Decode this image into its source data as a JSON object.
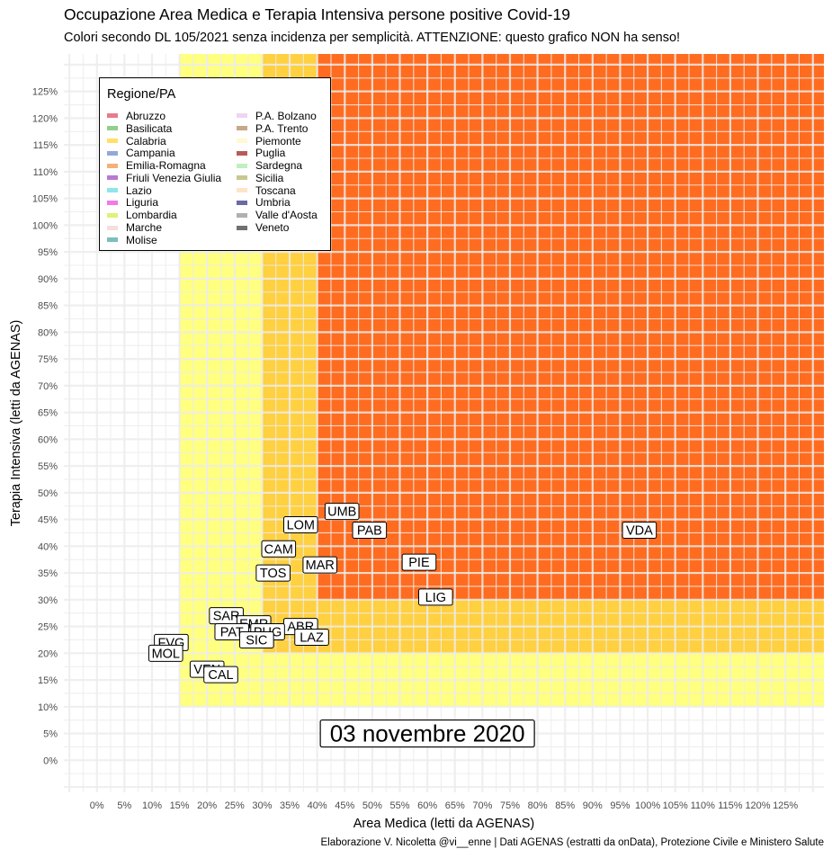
{
  "title": "Occupazione Area Medica e Terapia Intensiva persone positive Covid-19",
  "subtitle": "Colori secondo DL 105/2021 senza incidenza per semplicità. ATTENZIONE: questo grafico NON ha senso!",
  "caption": "Elaborazione V. Nicoletta @vi__enne | Dati AGENAS (estratti da onData), Protezione Civile e Ministero Salute",
  "colors": {
    "yellow": "#ffff80",
    "orange": "#ffd040",
    "red": "#ff6c20",
    "grid": "#ececec",
    "label_bg": "#ffffff",
    "label_border": "#000000"
  },
  "chart_data": {
    "type": "scatter",
    "xlabel": "Area Medica (letti da AGENAS)",
    "ylabel": "Terapia Intensiva (letti da AGENAS)",
    "xlim": [
      -6,
      132
    ],
    "ylim": [
      -6,
      132
    ],
    "x_ticks": [
      0,
      5,
      10,
      15,
      20,
      25,
      30,
      35,
      40,
      45,
      50,
      55,
      60,
      65,
      70,
      75,
      80,
      85,
      90,
      95,
      100,
      105,
      110,
      115,
      120,
      125
    ],
    "y_ticks": [
      0,
      5,
      10,
      15,
      20,
      25,
      30,
      35,
      40,
      45,
      50,
      55,
      60,
      65,
      70,
      75,
      80,
      85,
      90,
      95,
      100,
      105,
      110,
      115,
      120,
      125
    ],
    "tick_suffix": "%",
    "grid": true,
    "zones": [
      {
        "name": "gialla",
        "color": "#ffff80",
        "x_from": 15,
        "y_from": 10
      },
      {
        "name": "arancione",
        "color": "#ffd040",
        "x_from": 30,
        "y_from": 20
      },
      {
        "name": "rossa",
        "color": "#ff6c20",
        "x_from": 40,
        "y_from": 30
      }
    ],
    "annotation": "03 novembre 2020",
    "points": [
      {
        "label": "UMB",
        "x": 44.5,
        "y": 46.5
      },
      {
        "label": "LOM",
        "x": 37,
        "y": 44
      },
      {
        "label": "PAB",
        "x": 49.5,
        "y": 43
      },
      {
        "label": "VDA",
        "x": 98.5,
        "y": 43
      },
      {
        "label": "CAM",
        "x": 33,
        "y": 39.5
      },
      {
        "label": "MAR",
        "x": 40.5,
        "y": 36.5
      },
      {
        "label": "PIE",
        "x": 58.5,
        "y": 37
      },
      {
        "label": "TOS",
        "x": 32,
        "y": 35
      },
      {
        "label": "LIG",
        "x": 61.5,
        "y": 30.5
      },
      {
        "label": "SAR",
        "x": 23.5,
        "y": 27
      },
      {
        "label": "ABR",
        "x": 37,
        "y": 25
      },
      {
        "label": "EMR",
        "x": 28.5,
        "y": 25.5
      },
      {
        "label": "PUG",
        "x": 31,
        "y": 24
      },
      {
        "label": "PAT",
        "x": 24.5,
        "y": 24
      },
      {
        "label": "SIC",
        "x": 29,
        "y": 22.5
      },
      {
        "label": "LAZ",
        "x": 39,
        "y": 23
      },
      {
        "label": "FVG",
        "x": 13.5,
        "y": 22
      },
      {
        "label": "MOL",
        "x": 12.5,
        "y": 20
      },
      {
        "label": "VEN",
        "x": 20,
        "y": 17
      },
      {
        "label": "CAL",
        "x": 22.5,
        "y": 16
      }
    ]
  },
  "legend": {
    "title": "Regione/PA",
    "items": [
      {
        "name": "Abruzzo",
        "color": "#e87a8c"
      },
      {
        "name": "Basilicata",
        "color": "#8fd08f"
      },
      {
        "name": "Calabria",
        "color": "#ffe06b"
      },
      {
        "name": "Campania",
        "color": "#94a8d8"
      },
      {
        "name": "Emilia-Romagna",
        "color": "#f5b07a"
      },
      {
        "name": "Friuli Venezia Giulia",
        "color": "#b87ad0"
      },
      {
        "name": "Lazio",
        "color": "#8fe6e6"
      },
      {
        "name": "Liguria",
        "color": "#f07ae6"
      },
      {
        "name": "Lombardia",
        "color": "#e0f07a"
      },
      {
        "name": "Marche",
        "color": "#f5dede"
      },
      {
        "name": "Molise",
        "color": "#7ac0b8"
      },
      {
        "name": "P.A. Bolzano",
        "color": "#ecd6f0"
      },
      {
        "name": "P.A. Trento",
        "color": "#c8a888"
      },
      {
        "name": "Piemonte",
        "color": "#fff8d0"
      },
      {
        "name": "Puglia",
        "color": "#b85a5a"
      },
      {
        "name": "Sardegna",
        "color": "#c0f0c0"
      },
      {
        "name": "Sicilia",
        "color": "#c8c890"
      },
      {
        "name": "Toscana",
        "color": "#fde4c8"
      },
      {
        "name": "Umbria",
        "color": "#6a6aa8"
      },
      {
        "name": "Valle d'Aosta",
        "color": "#b0b0b0"
      },
      {
        "name": "Veneto",
        "color": "#707070"
      }
    ]
  }
}
